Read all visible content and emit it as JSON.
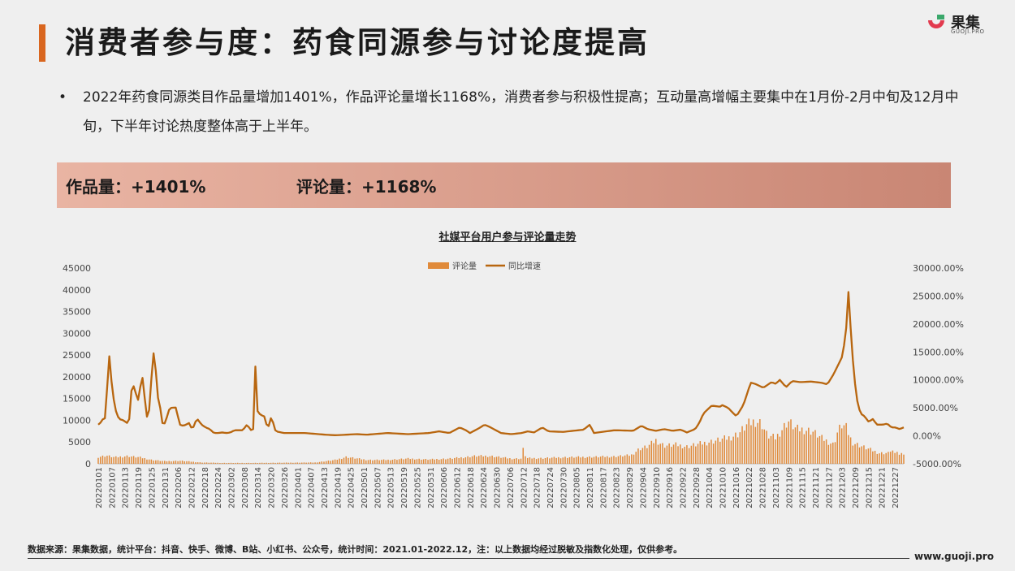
{
  "header": {
    "title": "消费者参与度：药食同源参与讨论度提高",
    "logo_text": "果集",
    "logo_sub": "GUOJI.PRO"
  },
  "bullet": {
    "symbol": "•",
    "text": "2022年药食同源类目作品量增加1401%，作品评论量增长1168%，消费者参与积极性提高；互动量高增幅主要集中在1月份-2月中旬及12月中旬，下半年讨论热度整体高于上半年。"
  },
  "banner": {
    "works_label": "作品量：+1401%",
    "comments_label": "评论量：+1168%"
  },
  "colors": {
    "accent": "#d9661f",
    "bar": "#e08a3a",
    "line": "#b8660f",
    "banner_start": "#e9b4a3",
    "banner_end": "#c98674"
  },
  "footer": {
    "source": "数据来源：果集数据，统计平台：抖音、快手、微博、B站、小红书、公众号，统计时间：2021.01-2022.12，注：以上数据均经过脱敏及指数化处理，仅供参考。",
    "site": "www.guoji.pro"
  },
  "chart_data": {
    "type": "bar+line",
    "title": "社媒平台用户参与评论量走势",
    "legend": [
      "评论量",
      "同比增速"
    ],
    "legend_position": "top-center",
    "grid": false,
    "x_start": "20220101",
    "x_end": "20221231",
    "x_tick_labels": [
      "20220101",
      "20220107",
      "20220113",
      "20220119",
      "20220125",
      "20220131",
      "20220206",
      "20220212",
      "20220218",
      "20220224",
      "20220302",
      "20220308",
      "20220314",
      "20220320",
      "20220326",
      "20220401",
      "20220407",
      "20220413",
      "20220419",
      "20220425",
      "20220501",
      "20220507",
      "20220513",
      "20220519",
      "20220525",
      "20220531",
      "20220606",
      "20220612",
      "20220618",
      "20220624",
      "20220630",
      "20220706",
      "20220712",
      "20220718",
      "20220724",
      "20220730",
      "20220805",
      "20220811",
      "20220817",
      "20220823",
      "20220829",
      "20220904",
      "20220910",
      "20220916",
      "20220922",
      "20220928",
      "20221004",
      "20221010",
      "20221016",
      "20221022",
      "20221028",
      "20221103",
      "20221109",
      "20221115",
      "20221121",
      "20221127",
      "20221203",
      "20221209",
      "20221215",
      "20221221",
      "20221227"
    ],
    "y_left": {
      "min": 0,
      "max": 45000,
      "ticks": [
        "0",
        "5000",
        "10000",
        "15000",
        "20000",
        "25000",
        "30000",
        "35000",
        "40000",
        "45000"
      ]
    },
    "y_right": {
      "min": -5000,
      "max": 30000,
      "ticks": [
        "-5000.00%",
        "0.00%",
        "5000.00%",
        "10000.00%",
        "15000.00%",
        "20000.00%",
        "25000.00%",
        "30000.00%"
      ]
    },
    "bar_keypoints": [
      [
        0,
        1600
      ],
      [
        4,
        1900
      ],
      [
        8,
        1500
      ],
      [
        14,
        1800
      ],
      [
        20,
        1500
      ],
      [
        26,
        900
      ],
      [
        32,
        600
      ],
      [
        40,
        700
      ],
      [
        50,
        300
      ],
      [
        60,
        200
      ],
      [
        75,
        200
      ],
      [
        90,
        250
      ],
      [
        105,
        300
      ],
      [
        115,
        900
      ],
      [
        120,
        1600
      ],
      [
        130,
        900
      ],
      [
        140,
        900
      ],
      [
        150,
        1200
      ],
      [
        160,
        1000
      ],
      [
        170,
        1200
      ],
      [
        177,
        1500
      ],
      [
        182,
        1800
      ],
      [
        190,
        1800
      ],
      [
        200,
        1200
      ],
      [
        205,
        1200
      ],
      [
        206,
        4200
      ],
      [
        207,
        1300
      ],
      [
        215,
        1300
      ],
      [
        225,
        1500
      ],
      [
        240,
        1600
      ],
      [
        250,
        1700
      ],
      [
        258,
        2000
      ],
      [
        262,
        3500
      ],
      [
        266,
        4000
      ],
      [
        270,
        5500
      ],
      [
        274,
        4200
      ],
      [
        280,
        4400
      ],
      [
        285,
        4000
      ],
      [
        290,
        4500
      ],
      [
        295,
        5000
      ],
      [
        300,
        5500
      ],
      [
        305,
        6000
      ],
      [
        310,
        7000
      ],
      [
        314,
        9000
      ],
      [
        318,
        10000
      ],
      [
        321,
        9500
      ],
      [
        324,
        6500
      ],
      [
        328,
        6000
      ],
      [
        331,
        8000
      ],
      [
        334,
        10000
      ],
      [
        338,
        8000
      ],
      [
        342,
        8000
      ],
      [
        346,
        7500
      ],
      [
        350,
        6000
      ],
      [
        354,
        5000
      ],
      [
        356,
        4500
      ],
      [
        358,
        7500
      ],
      [
        360,
        9000
      ],
      [
        362,
        8500
      ],
      [
        365,
        5000
      ],
      [
        370,
        4000
      ],
      [
        378,
        2500
      ],
      [
        383,
        2500
      ],
      [
        384,
        3500
      ],
      [
        386,
        2000
      ],
      [
        387,
        3200
      ],
      [
        388,
        1800
      ],
      [
        389,
        3000
      ],
      [
        390,
        2200
      ]
    ],
    "growth_keypoints": [
      [
        0,
        2000
      ],
      [
        1,
        2300
      ],
      [
        2,
        3000
      ],
      [
        3,
        2500
      ],
      [
        4,
        5500
      ],
      [
        5,
        16000
      ],
      [
        6,
        11000
      ],
      [
        8,
        5000
      ],
      [
        10,
        3000
      ],
      [
        12,
        2800
      ],
      [
        14,
        2300
      ],
      [
        15,
        3000
      ],
      [
        16,
        8000
      ],
      [
        17,
        9000
      ],
      [
        18,
        8000
      ],
      [
        19,
        6000
      ],
      [
        20,
        7500
      ],
      [
        21,
        11000
      ],
      [
        22,
        9500
      ],
      [
        23,
        4000
      ],
      [
        24,
        3000
      ],
      [
        25,
        5500
      ],
      [
        26,
        12000
      ],
      [
        27,
        15500
      ],
      [
        28,
        11000
      ],
      [
        29,
        6500
      ],
      [
        30,
        5000
      ],
      [
        31,
        2300
      ],
      [
        32,
        2100
      ],
      [
        33,
        3000
      ],
      [
        34,
        4500
      ],
      [
        35,
        5000
      ],
      [
        36,
        5000
      ],
      [
        37,
        5100
      ],
      [
        38,
        5000
      ],
      [
        39,
        2300
      ],
      [
        40,
        1800
      ],
      [
        42,
        1900
      ],
      [
        44,
        2300
      ],
      [
        45,
        1500
      ],
      [
        46,
        1500
      ],
      [
        47,
        2500
      ],
      [
        48,
        3000
      ],
      [
        50,
        2000
      ],
      [
        52,
        1500
      ],
      [
        54,
        1200
      ],
      [
        56,
        500
      ],
      [
        58,
        500
      ],
      [
        60,
        600
      ],
      [
        62,
        500
      ],
      [
        64,
        600
      ],
      [
        66,
        1000
      ],
      [
        68,
        1000
      ],
      [
        70,
        1000
      ],
      [
        72,
        2000
      ],
      [
        74,
        1000
      ],
      [
        75,
        1200
      ],
      [
        76,
        13000
      ],
      [
        77,
        4500
      ],
      [
        78,
        4000
      ],
      [
        79,
        3500
      ],
      [
        80,
        4000
      ],
      [
        81,
        2500
      ],
      [
        82,
        1500
      ],
      [
        83,
        2000
      ],
      [
        84,
        4000
      ],
      [
        85,
        1500
      ],
      [
        86,
        800
      ],
      [
        90,
        500
      ],
      [
        95,
        500
      ],
      [
        100,
        500
      ],
      [
        110,
        200
      ],
      [
        115,
        100
      ],
      [
        125,
        300
      ],
      [
        130,
        200
      ],
      [
        140,
        500
      ],
      [
        150,
        300
      ],
      [
        160,
        500
      ],
      [
        165,
        800
      ],
      [
        170,
        500
      ],
      [
        175,
        1500
      ],
      [
        178,
        1000
      ],
      [
        180,
        500
      ],
      [
        185,
        1500
      ],
      [
        187,
        2000
      ],
      [
        190,
        1500
      ],
      [
        195,
        500
      ],
      [
        200,
        300
      ],
      [
        205,
        500
      ],
      [
        208,
        800
      ],
      [
        211,
        600
      ],
      [
        215,
        1500
      ],
      [
        218,
        800
      ],
      [
        225,
        700
      ],
      [
        235,
        1100
      ],
      [
        238,
        2000
      ],
      [
        240,
        500
      ],
      [
        250,
        1000
      ],
      [
        259,
        900
      ],
      [
        263,
        1800
      ],
      [
        266,
        1200
      ],
      [
        270,
        900
      ],
      [
        274,
        1200
      ],
      [
        278,
        900
      ],
      [
        282,
        1100
      ],
      [
        285,
        600
      ],
      [
        289,
        1200
      ],
      [
        291,
        2300
      ],
      [
        293,
        4000
      ],
      [
        297,
        5400
      ],
      [
        301,
        5200
      ],
      [
        302,
        5500
      ],
      [
        305,
        5000
      ],
      [
        307,
        4200
      ],
      [
        309,
        3500
      ],
      [
        312,
        5300
      ],
      [
        313,
        6200
      ],
      [
        315,
        8500
      ],
      [
        316,
        9500
      ],
      [
        318,
        9300
      ],
      [
        322,
        8600
      ],
      [
        326,
        9600
      ],
      [
        328,
        9300
      ],
      [
        330,
        10000
      ],
      [
        333,
        8700
      ],
      [
        336,
        9800
      ],
      [
        340,
        9600
      ],
      [
        345,
        9700
      ],
      [
        350,
        9500
      ],
      [
        353,
        9200
      ],
      [
        356,
        11000
      ],
      [
        360,
        14000
      ],
      [
        362,
        18000
      ],
      [
        363,
        27000
      ],
      [
        364,
        21000
      ],
      [
        365,
        15000
      ],
      [
        367,
        7000
      ],
      [
        369,
        4000
      ],
      [
        371,
        3500
      ],
      [
        373,
        2500
      ],
      [
        375,
        3000
      ],
      [
        377,
        2000
      ],
      [
        380,
        2000
      ],
      [
        382,
        2200
      ],
      [
        384,
        1500
      ],
      [
        386,
        1500
      ],
      [
        388,
        1200
      ],
      [
        390,
        1500
      ]
    ]
  }
}
